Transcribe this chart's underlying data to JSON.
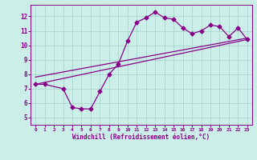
{
  "xlabel": "Windchill (Refroidissement éolien,°C)",
  "bg_color": "#cceee8",
  "line_color": "#880088",
  "grid_color": "#a8d8d0",
  "xlim": [
    -0.5,
    23.5
  ],
  "ylim": [
    4.5,
    12.8
  ],
  "xticks": [
    0,
    1,
    2,
    3,
    4,
    5,
    6,
    7,
    8,
    9,
    10,
    11,
    12,
    13,
    14,
    15,
    16,
    17,
    18,
    19,
    20,
    21,
    22,
    23
  ],
  "yticks": [
    5,
    6,
    7,
    8,
    9,
    10,
    11,
    12
  ],
  "series1_x": [
    0,
    1,
    3,
    4,
    5,
    6,
    7,
    8,
    9,
    10,
    11,
    12,
    13,
    14,
    15,
    16,
    17,
    18,
    19,
    20,
    21,
    22,
    23
  ],
  "series1_y": [
    7.3,
    7.3,
    7.0,
    5.7,
    5.6,
    5.6,
    6.8,
    8.0,
    8.7,
    10.3,
    11.6,
    11.9,
    12.3,
    11.9,
    11.8,
    11.2,
    10.8,
    11.0,
    11.4,
    11.3,
    10.6,
    11.2,
    10.4
  ],
  "line1_x": [
    0,
    23
  ],
  "line1_y": [
    7.3,
    10.4
  ],
  "line2_x": [
    0,
    23
  ],
  "line2_y": [
    7.8,
    10.5
  ],
  "marker": "D",
  "markersize": 2.5,
  "linewidth": 0.9
}
